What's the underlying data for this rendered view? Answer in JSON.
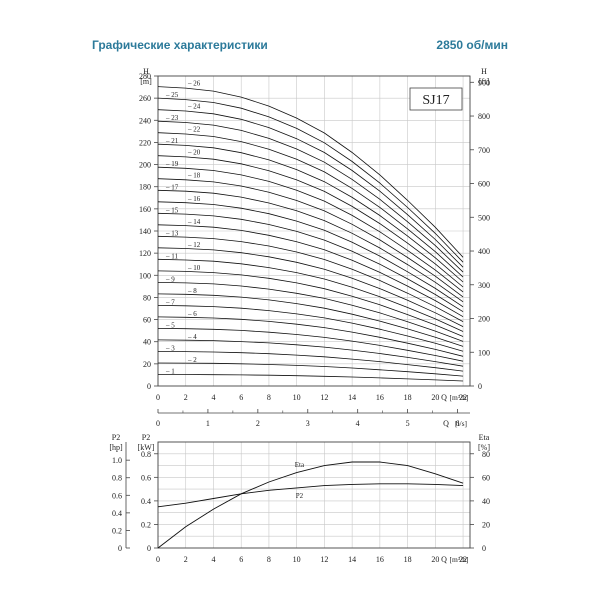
{
  "header": {
    "title": "Графические характеристики",
    "speed": "2850 об/мин"
  },
  "chart_data": [
    {
      "type": "line",
      "name_label": "SJ17",
      "xlabel": "Q [m³/h]",
      "xlabel2": "Q [l/s]",
      "ylabel_left": "H [m]",
      "ylabel_right": "H [ft]",
      "x_ticks": [
        "0",
        "2",
        "4",
        "6",
        "8",
        "10",
        "12",
        "14",
        "16",
        "18",
        "20",
        "22"
      ],
      "x2_ticks": [
        "0",
        "1",
        "2",
        "3",
        "4",
        "5",
        "6"
      ],
      "y_ticks": [
        "0",
        "20",
        "40",
        "60",
        "80",
        "100",
        "120",
        "140",
        "160",
        "180",
        "200",
        "220",
        "240",
        "260",
        "280"
      ],
      "y_right_ticks": [
        "0",
        "100",
        "200",
        "300",
        "400",
        "500",
        "600",
        "700",
        "800",
        "900"
      ],
      "xlim": [
        0,
        22.5
      ],
      "ylim": [
        0,
        280
      ],
      "x": [
        0,
        2,
        4,
        6,
        8,
        10,
        12,
        14,
        16,
        18,
        20,
        22
      ],
      "curve_shape": [
        1.0,
        0.995,
        0.985,
        0.965,
        0.935,
        0.895,
        0.845,
        0.78,
        0.705,
        0.62,
        0.53,
        0.43
      ],
      "stages": [
        {
          "label": "1",
          "shutoff_head": 10.4
        },
        {
          "label": "2",
          "shutoff_head": 20.8
        },
        {
          "label": "3",
          "shutoff_head": 31.2
        },
        {
          "label": "4",
          "shutoff_head": 41.6
        },
        {
          "label": "5",
          "shutoff_head": 52.0
        },
        {
          "label": "6",
          "shutoff_head": 62.4
        },
        {
          "label": "7",
          "shutoff_head": 72.8
        },
        {
          "label": "8",
          "shutoff_head": 83.2
        },
        {
          "label": "9",
          "shutoff_head": 93.6
        },
        {
          "label": "10",
          "shutoff_head": 104.0
        },
        {
          "label": "11",
          "shutoff_head": 114.4
        },
        {
          "label": "12",
          "shutoff_head": 124.8
        },
        {
          "label": "13",
          "shutoff_head": 135.2
        },
        {
          "label": "14",
          "shutoff_head": 145.6
        },
        {
          "label": "15",
          "shutoff_head": 156.0
        },
        {
          "label": "16",
          "shutoff_head": 166.4
        },
        {
          "label": "17",
          "shutoff_head": 176.8
        },
        {
          "label": "18",
          "shutoff_head": 187.2
        },
        {
          "label": "19",
          "shutoff_head": 197.6
        },
        {
          "label": "20",
          "shutoff_head": 208.0
        },
        {
          "label": "21",
          "shutoff_head": 218.4
        },
        {
          "label": "22",
          "shutoff_head": 228.8
        },
        {
          "label": "23",
          "shutoff_head": 239.2
        },
        {
          "label": "24",
          "shutoff_head": 249.6
        },
        {
          "label": "25",
          "shutoff_head": 260.0
        },
        {
          "label": "26",
          "shutoff_head": 270.4
        }
      ],
      "grid": true
    },
    {
      "type": "line",
      "xlabel": "Q [m³/h]",
      "ylabel_left_hp": "P2 [hp]",
      "ylabel_left_kw": "P2 [kW]",
      "ylabel_right": "Eta [%]",
      "x_ticks": [
        "0",
        "2",
        "4",
        "6",
        "8",
        "10",
        "12",
        "14",
        "16",
        "18",
        "20",
        "22"
      ],
      "hp_ticks": [
        "0",
        "0.2",
        "0.4",
        "0.6",
        "0.8",
        "1.0"
      ],
      "kw_ticks": [
        "0",
        "0.2",
        "0.4",
        "0.6",
        "0.8"
      ],
      "eta_ticks": [
        "0",
        "20",
        "40",
        "60",
        "80"
      ],
      "xlim": [
        0,
        22.5
      ],
      "kw_lim": [
        0,
        0.9
      ],
      "eta_lim": [
        0,
        90
      ],
      "series": [
        {
          "name": "Eta",
          "axis": "eta",
          "x": [
            0,
            2,
            4,
            6,
            8,
            10,
            12,
            14,
            16,
            18,
            20,
            22
          ],
          "values": [
            0,
            18,
            33,
            46,
            56,
            64,
            70,
            73,
            73,
            70,
            63,
            55
          ]
        },
        {
          "name": "P2",
          "axis": "kw",
          "x": [
            0,
            2,
            4,
            6,
            8,
            10,
            12,
            14,
            16,
            18,
            20,
            22
          ],
          "values": [
            0.35,
            0.38,
            0.42,
            0.46,
            0.49,
            0.51,
            0.53,
            0.54,
            0.545,
            0.545,
            0.54,
            0.53
          ]
        }
      ],
      "grid": true
    }
  ]
}
